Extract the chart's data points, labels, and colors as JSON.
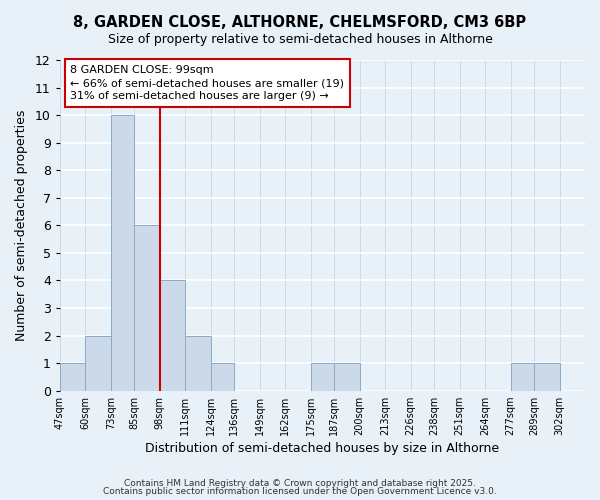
{
  "title": "8, GARDEN CLOSE, ALTHORNE, CHELMSFORD, CM3 6BP",
  "subtitle": "Size of property relative to semi-detached houses in Althorne",
  "xlabel": "Distribution of semi-detached houses by size in Althorne",
  "ylabel": "Number of semi-detached properties",
  "bins": [
    47,
    60,
    73,
    85,
    98,
    111,
    124,
    136,
    149,
    162,
    175,
    187,
    200,
    213,
    226,
    238,
    251,
    264,
    277,
    289,
    302
  ],
  "bin_labels": [
    "47sqm",
    "60sqm",
    "73sqm",
    "85sqm",
    "98sqm",
    "111sqm",
    "124sqm",
    "136sqm",
    "149sqm",
    "162sqm",
    "175sqm",
    "187sqm",
    "200sqm",
    "213sqm",
    "226sqm",
    "238sqm",
    "251sqm",
    "264sqm",
    "277sqm",
    "289sqm",
    "302sqm"
  ],
  "counts": [
    1,
    2,
    10,
    6,
    4,
    2,
    1,
    0,
    0,
    0,
    1,
    1,
    0,
    0,
    0,
    0,
    0,
    0,
    1,
    1,
    0
  ],
  "bar_color": "#ccd9e8",
  "bar_edge_color": "#8aaac8",
  "vline_x": 98,
  "vline_color": "#cc0000",
  "ylim": [
    0,
    12
  ],
  "yticks": [
    0,
    1,
    2,
    3,
    4,
    5,
    6,
    7,
    8,
    9,
    10,
    11,
    12
  ],
  "annotation_line1": "8 GARDEN CLOSE: 99sqm",
  "annotation_line2": "← 66% of semi-detached houses are smaller (19)",
  "annotation_line3": "31% of semi-detached houses are larger (9) →",
  "bg_color": "#e8f0f8",
  "plot_bg_color": "#e8f0f8",
  "grid_color": "#c8d4e0",
  "footer1": "Contains HM Land Registry data © Crown copyright and database right 2025.",
  "footer2": "Contains public sector information licensed under the Open Government Licence v3.0."
}
